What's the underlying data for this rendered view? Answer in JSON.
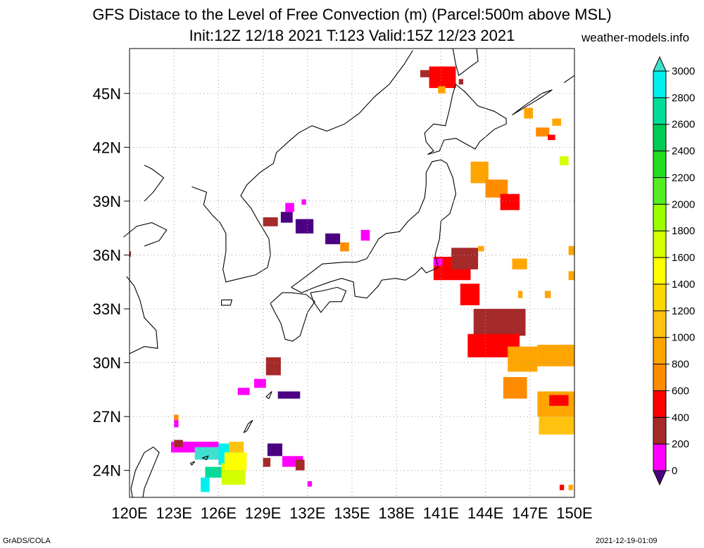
{
  "title": {
    "line1": "GFS Distace to the Level of Free Convection (m) (Parcel:500m above MSL)",
    "line2": "Init:12Z 12/18 2021 T:123 Valid:15Z 12/23 2021",
    "site": "weather-models.info"
  },
  "footer": {
    "left": "GrADS/COLA",
    "right": "2021-12-19-01:09"
  },
  "map": {
    "lon_range": [
      120,
      150
    ],
    "lat_range": [
      22.5,
      47.5
    ],
    "lon_ticks": [
      "120E",
      "123E",
      "126E",
      "129E",
      "132E",
      "135E",
      "138E",
      "141E",
      "144E",
      "147E",
      "150E"
    ],
    "lat_ticks": [
      "24N",
      "27N",
      "30N",
      "33N",
      "36N",
      "39N",
      "42N",
      "45N"
    ],
    "grid": true
  },
  "colorbar": {
    "levels": [
      "0",
      "200",
      "400",
      "600",
      "800",
      "1000",
      "1200",
      "1400",
      "1600",
      "1800",
      "2000",
      "2200",
      "2400",
      "2600",
      "2800",
      "3000"
    ],
    "colors": [
      "#4b0082",
      "#ff00ff",
      "#a52a2a",
      "#ff0000",
      "#ff8c00",
      "#ffa500",
      "#ffc20e",
      "#ffd700",
      "#ffff00",
      "#d4ff00",
      "#9aff00",
      "#55ee22",
      "#22dd22",
      "#00cc55",
      "#00dd99",
      "#00f0f0",
      "#40e0d0"
    ]
  },
  "patches": [
    {
      "lon": 140.2,
      "lat": 45.3,
      "w": 1.8,
      "h": 1.2,
      "c": "#ff0000"
    },
    {
      "lon": 139.6,
      "lat": 45.9,
      "w": 0.6,
      "h": 0.4,
      "c": "#a52a2a"
    },
    {
      "lon": 140.8,
      "lat": 45.0,
      "w": 0.5,
      "h": 0.4,
      "c": "#ffa500"
    },
    {
      "lon": 142.2,
      "lat": 45.5,
      "w": 0.3,
      "h": 0.3,
      "c": "#a52a2a"
    },
    {
      "lon": 143.0,
      "lat": 40.0,
      "w": 1.2,
      "h": 1.2,
      "c": "#ffa500"
    },
    {
      "lon": 144.0,
      "lat": 39.2,
      "w": 1.5,
      "h": 1.0,
      "c": "#ff8c00"
    },
    {
      "lon": 145.0,
      "lat": 38.5,
      "w": 1.3,
      "h": 0.9,
      "c": "#ff0000"
    },
    {
      "lon": 146.6,
      "lat": 43.6,
      "w": 0.6,
      "h": 0.6,
      "c": "#ffa500"
    },
    {
      "lon": 147.4,
      "lat": 42.6,
      "w": 0.9,
      "h": 0.5,
      "c": "#ff8c00"
    },
    {
      "lon": 148.5,
      "lat": 43.2,
      "w": 0.6,
      "h": 0.4,
      "c": "#ffa500"
    },
    {
      "lon": 149.0,
      "lat": 41.0,
      "w": 0.6,
      "h": 0.5,
      "c": "#d4ff00"
    },
    {
      "lon": 148.2,
      "lat": 42.4,
      "w": 0.5,
      "h": 0.3,
      "c": "#ff0000"
    },
    {
      "lon": 130.2,
      "lat": 37.8,
      "w": 0.8,
      "h": 0.6,
      "c": "#4b0082"
    },
    {
      "lon": 131.2,
      "lat": 37.2,
      "w": 1.2,
      "h": 0.8,
      "c": "#4b0082"
    },
    {
      "lon": 129.0,
      "lat": 37.6,
      "w": 1.0,
      "h": 0.5,
      "c": "#a52a2a"
    },
    {
      "lon": 130.5,
      "lat": 38.4,
      "w": 0.6,
      "h": 0.5,
      "c": "#ff00ff"
    },
    {
      "lon": 133.2,
      "lat": 36.6,
      "w": 1.0,
      "h": 0.6,
      "c": "#4b0082"
    },
    {
      "lon": 134.2,
      "lat": 36.2,
      "w": 0.6,
      "h": 0.5,
      "c": "#ff8c00"
    },
    {
      "lon": 135.6,
      "lat": 36.8,
      "w": 0.6,
      "h": 0.6,
      "c": "#ff00ff"
    },
    {
      "lon": 131.6,
      "lat": 38.8,
      "w": 0.3,
      "h": 0.3,
      "c": "#ff00ff"
    },
    {
      "lon": 140.5,
      "lat": 34.6,
      "w": 2.5,
      "h": 1.3,
      "c": "#ff0000"
    },
    {
      "lon": 141.7,
      "lat": 35.2,
      "w": 1.8,
      "h": 1.2,
      "c": "#a52a2a"
    },
    {
      "lon": 142.3,
      "lat": 33.2,
      "w": 1.3,
      "h": 1.2,
      "c": "#ff0000"
    },
    {
      "lon": 143.2,
      "lat": 31.5,
      "w": 3.5,
      "h": 1.5,
      "c": "#a52a2a"
    },
    {
      "lon": 142.8,
      "lat": 30.3,
      "w": 3.5,
      "h": 1.3,
      "c": "#ff0000"
    },
    {
      "lon": 145.5,
      "lat": 29.5,
      "w": 2.0,
      "h": 1.4,
      "c": "#ffa500"
    },
    {
      "lon": 147.5,
      "lat": 29.8,
      "w": 2.5,
      "h": 1.2,
      "c": "#ffa500"
    },
    {
      "lon": 145.2,
      "lat": 28.0,
      "w": 1.6,
      "h": 1.2,
      "c": "#ff8c00"
    },
    {
      "lon": 147.5,
      "lat": 27.0,
      "w": 2.5,
      "h": 1.4,
      "c": "#ffa500"
    },
    {
      "lon": 147.6,
      "lat": 26.0,
      "w": 2.4,
      "h": 1.0,
      "c": "#ffc20e"
    },
    {
      "lon": 148.3,
      "lat": 27.6,
      "w": 1.3,
      "h": 0.6,
      "c": "#ff0000"
    },
    {
      "lon": 145.8,
      "lat": 35.2,
      "w": 1.0,
      "h": 0.6,
      "c": "#ffa500"
    },
    {
      "lon": 149.6,
      "lat": 36.0,
      "w": 0.4,
      "h": 0.5,
      "c": "#ffa500"
    },
    {
      "lon": 143.5,
      "lat": 36.2,
      "w": 0.4,
      "h": 0.3,
      "c": "#ffa500"
    },
    {
      "lon": 146.2,
      "lat": 33.6,
      "w": 0.3,
      "h": 0.4,
      "c": "#ffa500"
    },
    {
      "lon": 148.0,
      "lat": 33.6,
      "w": 0.4,
      "h": 0.4,
      "c": "#ffa500"
    },
    {
      "lon": 149.6,
      "lat": 34.6,
      "w": 0.4,
      "h": 0.5,
      "c": "#ffa500"
    },
    {
      "lon": 140.5,
      "lat": 35.4,
      "w": 0.6,
      "h": 0.4,
      "c": "#ff00ff"
    },
    {
      "lon": 129.2,
      "lat": 29.3,
      "w": 1.0,
      "h": 1.0,
      "c": "#a52a2a"
    },
    {
      "lon": 128.4,
      "lat": 28.6,
      "w": 0.8,
      "h": 0.5,
      "c": "#ff00ff"
    },
    {
      "lon": 127.3,
      "lat": 28.2,
      "w": 0.8,
      "h": 0.4,
      "c": "#ff00ff"
    },
    {
      "lon": 130.0,
      "lat": 28.0,
      "w": 1.5,
      "h": 0.4,
      "c": "#4b0082"
    },
    {
      "lon": 122.8,
      "lat": 25.0,
      "w": 3.2,
      "h": 0.6,
      "c": "#ff00ff"
    },
    {
      "lon": 123.0,
      "lat": 25.3,
      "w": 0.6,
      "h": 0.4,
      "c": "#a52a2a"
    },
    {
      "lon": 124.4,
      "lat": 24.6,
      "w": 2.2,
      "h": 0.7,
      "c": "#40e0d0"
    },
    {
      "lon": 126.0,
      "lat": 24.3,
      "w": 1.5,
      "h": 1.2,
      "c": "#00f0f0"
    },
    {
      "lon": 125.1,
      "lat": 23.6,
      "w": 1.2,
      "h": 0.6,
      "c": "#00dd99"
    },
    {
      "lon": 126.2,
      "lat": 23.2,
      "w": 1.6,
      "h": 1.2,
      "c": "#d4ff00"
    },
    {
      "lon": 126.4,
      "lat": 24.0,
      "w": 1.5,
      "h": 1.0,
      "c": "#ffff00"
    },
    {
      "lon": 126.7,
      "lat": 25.0,
      "w": 1.0,
      "h": 0.6,
      "c": "#ffc20e"
    },
    {
      "lon": 124.8,
      "lat": 22.8,
      "w": 0.6,
      "h": 0.8,
      "c": "#00f0f0"
    },
    {
      "lon": 129.3,
      "lat": 24.8,
      "w": 1.0,
      "h": 0.7,
      "c": "#4b0082"
    },
    {
      "lon": 130.3,
      "lat": 24.2,
      "w": 1.4,
      "h": 0.6,
      "c": "#ff00ff"
    },
    {
      "lon": 131.2,
      "lat": 24.0,
      "w": 0.6,
      "h": 0.6,
      "c": "#a52a2a"
    },
    {
      "lon": 129.0,
      "lat": 24.2,
      "w": 0.5,
      "h": 0.5,
      "c": "#a52a2a"
    },
    {
      "lon": 123.0,
      "lat": 26.4,
      "w": 0.3,
      "h": 0.6,
      "c": "#ff00ff"
    },
    {
      "lon": 123.0,
      "lat": 26.8,
      "w": 0.3,
      "h": 0.3,
      "c": "#ff8c00"
    },
    {
      "lon": 132.0,
      "lat": 23.1,
      "w": 0.3,
      "h": 0.3,
      "c": "#ff00ff"
    },
    {
      "lon": 149.0,
      "lat": 22.9,
      "w": 0.3,
      "h": 0.3,
      "c": "#ff0000"
    },
    {
      "lon": 149.6,
      "lat": 22.9,
      "w": 0.3,
      "h": 0.3,
      "c": "#ffa500"
    },
    {
      "lon": 119.8,
      "lat": 35.9,
      "w": 0.3,
      "h": 0.3,
      "c": "#a52a2a"
    }
  ],
  "coastlines": [
    [
      [
        120.9,
        22.5
      ],
      [
        121.0,
        23.0
      ],
      [
        121.5,
        24.0
      ],
      [
        122.0,
        25.0
      ],
      [
        121.6,
        25.3
      ],
      [
        121.0,
        25.0
      ],
      [
        120.4,
        24.0
      ],
      [
        120.1,
        23.0
      ],
      [
        120.2,
        22.5
      ]
    ],
    [
      [
        120.0,
        30.5
      ],
      [
        121.0,
        30.9
      ],
      [
        121.9,
        30.8
      ],
      [
        121.8,
        31.8
      ],
      [
        121.0,
        32.5
      ],
      [
        120.7,
        33.5
      ],
      [
        120.3,
        34.3
      ],
      [
        119.8,
        34.8
      ]
    ],
    [
      [
        119.6,
        37.0
      ],
      [
        120.5,
        37.6
      ],
      [
        121.5,
        37.8
      ],
      [
        122.5,
        37.4
      ],
      [
        122.0,
        36.8
      ],
      [
        121.0,
        36.5
      ]
    ],
    [
      [
        121.0,
        39.0
      ],
      [
        121.6,
        39.5
      ],
      [
        122.3,
        40.3
      ],
      [
        121.5,
        40.8
      ],
      [
        121.0,
        41.0
      ]
    ],
    [
      [
        124.2,
        39.8
      ],
      [
        125.2,
        39.5
      ],
      [
        125.0,
        38.8
      ],
      [
        125.6,
        38.2
      ],
      [
        126.1,
        37.8
      ],
      [
        126.5,
        37.2
      ],
      [
        126.5,
        36.2
      ],
      [
        126.3,
        35.2
      ],
      [
        126.5,
        34.5
      ],
      [
        127.5,
        34.7
      ],
      [
        128.5,
        34.9
      ],
      [
        129.3,
        35.3
      ],
      [
        129.5,
        36.0
      ],
      [
        129.4,
        36.9
      ],
      [
        128.6,
        38.0
      ],
      [
        128.2,
        38.6
      ],
      [
        127.5,
        39.3
      ],
      [
        127.9,
        39.9
      ],
      [
        128.8,
        40.6
      ],
      [
        129.7,
        41.1
      ],
      [
        129.9,
        41.7
      ],
      [
        130.7,
        42.3
      ]
    ],
    [
      [
        126.2,
        33.5
      ],
      [
        126.9,
        33.5
      ],
      [
        126.8,
        33.2
      ],
      [
        126.2,
        33.2
      ],
      [
        126.2,
        33.5
      ]
    ],
    [
      [
        130.7,
        42.3
      ],
      [
        131.4,
        42.8
      ],
      [
        132.3,
        43.2
      ],
      [
        133.3,
        42.9
      ],
      [
        134.5,
        43.3
      ],
      [
        135.5,
        43.9
      ],
      [
        136.5,
        44.8
      ],
      [
        137.5,
        45.5
      ],
      [
        138.5,
        46.6
      ],
      [
        139.1,
        47.4
      ]
    ],
    [
      [
        129.5,
        33.3
      ],
      [
        130.3,
        33.9
      ],
      [
        130.9,
        33.9
      ],
      [
        131.9,
        33.8
      ],
      [
        132.5,
        33.4
      ],
      [
        132.0,
        32.8
      ],
      [
        131.5,
        31.5
      ],
      [
        131.0,
        31.2
      ],
      [
        130.5,
        31.3
      ],
      [
        130.2,
        32.2
      ],
      [
        129.8,
        32.8
      ],
      [
        129.5,
        33.3
      ]
    ],
    [
      [
        132.2,
        33.9
      ],
      [
        133.0,
        34.0
      ],
      [
        134.0,
        34.2
      ],
      [
        134.6,
        34.0
      ],
      [
        134.3,
        33.4
      ],
      [
        133.5,
        33.4
      ],
      [
        132.9,
        32.8
      ],
      [
        132.4,
        33.4
      ],
      [
        132.2,
        33.9
      ]
    ],
    [
      [
        130.9,
        34.2
      ],
      [
        131.4,
        34.5
      ],
      [
        132.2,
        35.0
      ],
      [
        133.0,
        35.5
      ],
      [
        134.5,
        35.6
      ],
      [
        135.3,
        35.6
      ],
      [
        136.0,
        35.8
      ],
      [
        136.8,
        36.9
      ],
      [
        137.3,
        37.2
      ],
      [
        138.2,
        37.3
      ],
      [
        138.8,
        37.9
      ],
      [
        139.5,
        38.4
      ],
      [
        139.9,
        39.2
      ],
      [
        140.0,
        39.9
      ],
      [
        140.0,
        40.6
      ],
      [
        140.4,
        41.2
      ],
      [
        141.0,
        41.3
      ],
      [
        141.4,
        41.1
      ],
      [
        141.8,
        40.3
      ],
      [
        142.0,
        39.4
      ],
      [
        141.6,
        38.3
      ],
      [
        141.0,
        37.9
      ],
      [
        140.9,
        36.9
      ],
      [
        140.6,
        36.0
      ],
      [
        140.8,
        35.3
      ],
      [
        140.0,
        35.0
      ],
      [
        139.7,
        35.3
      ],
      [
        139.2,
        34.9
      ],
      [
        138.6,
        34.6
      ],
      [
        137.9,
        34.7
      ],
      [
        137.0,
        34.6
      ],
      [
        136.8,
        34.3
      ],
      [
        136.0,
        33.6
      ],
      [
        135.2,
        33.7
      ],
      [
        135.1,
        34.5
      ],
      [
        134.3,
        34.7
      ],
      [
        133.5,
        34.5
      ],
      [
        132.5,
        34.2
      ],
      [
        131.6,
        33.9
      ],
      [
        130.9,
        34.2
      ]
    ],
    [
      [
        140.1,
        41.6
      ],
      [
        140.5,
        41.8
      ],
      [
        140.0,
        42.3
      ],
      [
        139.9,
        42.8
      ],
      [
        140.5,
        43.3
      ],
      [
        141.3,
        43.2
      ],
      [
        141.6,
        44.2
      ],
      [
        141.8,
        45.0
      ],
      [
        142.0,
        45.5
      ],
      [
        142.6,
        45.1
      ],
      [
        143.5,
        44.3
      ],
      [
        144.6,
        44.0
      ],
      [
        145.4,
        43.6
      ],
      [
        145.4,
        43.3
      ],
      [
        144.6,
        43.0
      ],
      [
        143.6,
        42.3
      ],
      [
        143.3,
        41.9
      ],
      [
        142.0,
        42.5
      ],
      [
        141.2,
        42.4
      ],
      [
        140.9,
        41.8
      ],
      [
        140.1,
        41.6
      ]
    ],
    [
      [
        141.8,
        47.5
      ],
      [
        142.0,
        46.6
      ],
      [
        142.2,
        46.0
      ],
      [
        143.0,
        46.5
      ],
      [
        143.5,
        46.8
      ],
      [
        143.4,
        47.5
      ]
    ],
    [
      [
        145.8,
        43.8
      ],
      [
        146.8,
        44.3
      ],
      [
        147.8,
        44.8
      ],
      [
        148.5,
        45.2
      ],
      [
        147.8,
        45.0
      ],
      [
        146.6,
        44.3
      ],
      [
        145.8,
        43.8
      ]
    ],
    [
      [
        149.3,
        45.6
      ],
      [
        150.0,
        46.0
      ]
    ],
    [
      [
        127.7,
        26.1
      ],
      [
        128.0,
        26.6
      ],
      [
        128.3,
        26.8
      ],
      [
        127.9,
        26.2
      ],
      [
        127.7,
        26.1
      ]
    ],
    [
      [
        129.2,
        28.1
      ],
      [
        129.6,
        28.4
      ],
      [
        129.4,
        28.0
      ],
      [
        129.2,
        28.1
      ]
    ],
    [
      [
        124.9,
        24.7
      ],
      [
        125.3,
        24.8
      ],
      [
        125.2,
        24.6
      ],
      [
        124.9,
        24.7
      ]
    ],
    [
      [
        124.1,
        24.4
      ],
      [
        124.4,
        24.5
      ],
      [
        124.2,
        24.3
      ],
      [
        124.1,
        24.4
      ]
    ]
  ]
}
